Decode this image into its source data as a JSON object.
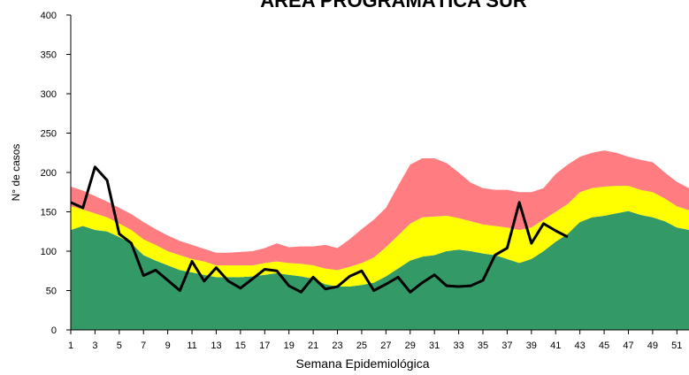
{
  "chart_data": {
    "type": "stacked-area-line",
    "title": "ÁREA PROGRAMÁTICA SUR",
    "xlabel": "Semana Epidemiológica",
    "ylabel": "N° de casos",
    "x": [
      1,
      2,
      3,
      4,
      5,
      6,
      7,
      8,
      9,
      10,
      11,
      12,
      13,
      14,
      15,
      16,
      17,
      18,
      19,
      20,
      21,
      22,
      23,
      24,
      25,
      26,
      27,
      28,
      29,
      30,
      31,
      32,
      33,
      34,
      35,
      36,
      37,
      38,
      39,
      40,
      41,
      42,
      43,
      44,
      45,
      46,
      47,
      48,
      49,
      50,
      51,
      52
    ],
    "xlim": [
      1,
      52
    ],
    "xticks": [
      1,
      3,
      5,
      7,
      9,
      11,
      13,
      15,
      17,
      19,
      21,
      23,
      25,
      27,
      29,
      31,
      33,
      35,
      37,
      39,
      41,
      43,
      45,
      47,
      49,
      51
    ],
    "ylim": [
      0,
      400
    ],
    "yticks": [
      0,
      50,
      100,
      150,
      200,
      250,
      300,
      350,
      400
    ],
    "series": [
      {
        "color": "#339966",
        "kind": "area",
        "values": [
          127,
          132,
          127,
          125,
          118,
          110,
          95,
          88,
          82,
          76,
          73,
          70,
          67,
          67,
          67,
          68,
          70,
          72,
          70,
          68,
          65,
          58,
          55,
          55,
          57,
          60,
          68,
          78,
          88,
          93,
          95,
          100,
          102,
          100,
          97,
          95,
          90,
          85,
          90,
          100,
          112,
          122,
          137,
          143,
          145,
          148,
          151,
          146,
          143,
          138,
          130,
          127
        ]
      },
      {
        "color": "#ffff00",
        "kind": "area",
        "values": [
          30,
          21,
          21,
          18,
          17,
          17,
          20,
          20,
          18,
          19,
          17,
          17,
          15,
          15,
          15,
          14,
          15,
          15,
          15,
          16,
          17,
          20,
          21,
          25,
          28,
          32,
          37,
          42,
          47,
          50,
          49,
          45,
          40,
          38,
          37,
          37,
          40,
          42,
          40,
          40,
          38,
          38,
          38,
          37,
          37,
          35,
          32,
          32,
          32,
          29,
          27,
          25
        ]
      },
      {
        "color": "#ff7c80",
        "kind": "area",
        "values": [
          25,
          24,
          22,
          20,
          20,
          20,
          22,
          20,
          20,
          18,
          18,
          16,
          16,
          16,
          17,
          18,
          19,
          23,
          20,
          22,
          24,
          30,
          28,
          35,
          43,
          48,
          50,
          63,
          75,
          75,
          74,
          67,
          58,
          49,
          46,
          46,
          48,
          48,
          45,
          40,
          48,
          50,
          45,
          45,
          46,
          42,
          37,
          38,
          38,
          33,
          31,
          28
        ]
      },
      {
        "color": "#000000",
        "kind": "line",
        "values": [
          162,
          155,
          207,
          190,
          122,
          110,
          69,
          76,
          63,
          50,
          87,
          62,
          79,
          62,
          53,
          65,
          77,
          75,
          56,
          48,
          67,
          52,
          55,
          68,
          75,
          50,
          58,
          67,
          48,
          60,
          70,
          56,
          55,
          56,
          63,
          95,
          104,
          162,
          110,
          135,
          126,
          118,
          null,
          null,
          null,
          null,
          null,
          null,
          null,
          null,
          null,
          null
        ]
      }
    ]
  }
}
